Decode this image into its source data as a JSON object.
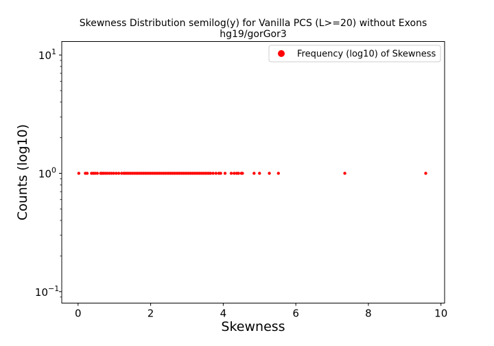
{
  "chart_data": {
    "type": "scatter",
    "title": "Skewness Distribution semilog(y) for Vanilla PCS (L>=20) without Exons",
    "subtitle": "hg19/gorGor3",
    "xlabel": "Skewness",
    "ylabel": "Counts (log10)",
    "xlim": [
      -0.45,
      10.1
    ],
    "ylim": [
      0.08,
      13
    ],
    "yscale": "log",
    "x_ticks": [
      0,
      2,
      4,
      6,
      8,
      10
    ],
    "x_tick_labels": [
      "0",
      "2",
      "4",
      "6",
      "8",
      "10"
    ],
    "y_ticks": [
      0.1,
      1,
      10
    ],
    "y_tick_labels": [
      "10",
      "10",
      "10"
    ],
    "y_tick_exponents": [
      "−1",
      "0",
      "1"
    ],
    "grid": false,
    "legend_position": "top-right",
    "marker_color": "#ff0000",
    "series": [
      {
        "name": "Frequency (log10) of Skewness",
        "y": 1,
        "x": [
          0.02,
          0.2,
          0.25,
          0.37,
          0.42,
          0.47,
          0.53,
          0.62,
          0.66,
          0.7,
          0.75,
          0.8,
          0.86,
          0.92,
          0.98,
          1.05,
          1.12,
          1.2,
          1.26,
          1.3,
          1.35,
          1.4,
          1.45,
          1.5,
          1.55,
          1.6,
          1.65,
          1.7,
          1.75,
          1.8,
          1.85,
          1.9,
          1.95,
          2.0,
          2.05,
          2.1,
          2.15,
          2.2,
          2.25,
          2.3,
          2.35,
          2.4,
          2.45,
          2.5,
          2.55,
          2.6,
          2.65,
          2.7,
          2.75,
          2.8,
          2.85,
          2.9,
          2.95,
          3.0,
          3.05,
          3.1,
          3.15,
          3.2,
          3.25,
          3.3,
          3.35,
          3.4,
          3.45,
          3.5,
          3.55,
          3.6,
          3.65,
          3.72,
          3.8,
          3.88,
          3.93,
          4.05,
          4.22,
          4.3,
          4.37,
          4.42,
          4.5,
          4.53,
          4.85,
          5.0,
          5.27,
          5.52,
          7.35,
          9.58
        ]
      }
    ]
  }
}
